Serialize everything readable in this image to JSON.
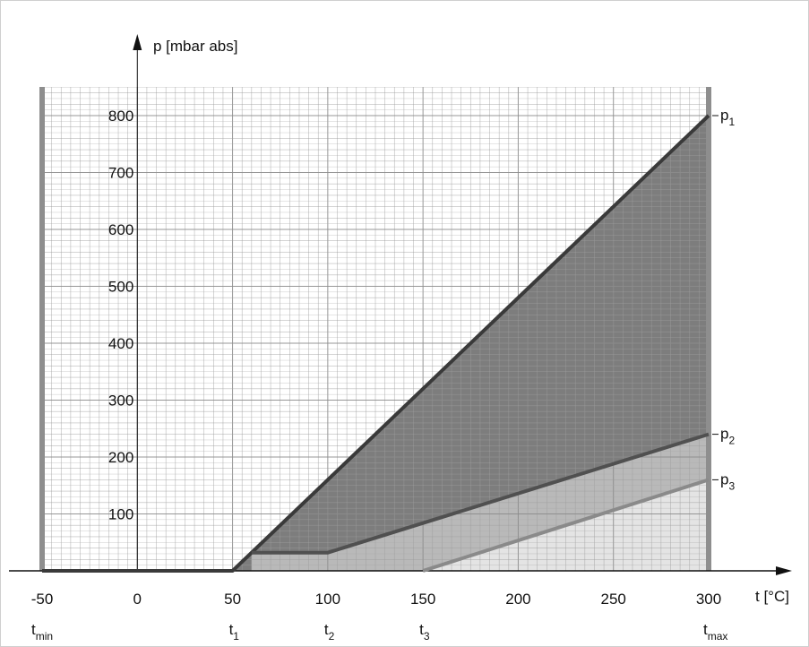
{
  "chart_data": {
    "type": "line",
    "xlabel": "t [°C]",
    "ylabel": "p [mbar abs]",
    "xlim": [
      -50,
      300
    ],
    "ylim": [
      0,
      800
    ],
    "x_ticks": [
      "-50",
      "0",
      "50",
      "100",
      "150",
      "200",
      "250",
      "300"
    ],
    "y_ticks": [
      "100",
      "200",
      "300",
      "400",
      "500",
      "600",
      "700",
      "800"
    ],
    "x_symbols": [
      {
        "base": "t",
        "sub": "min",
        "x": -50
      },
      {
        "base": "t",
        "sub": "1",
        "x": 50
      },
      {
        "base": "t",
        "sub": "2",
        "x": 100
      },
      {
        "base": "t",
        "sub": "3",
        "x": 150
      },
      {
        "base": "t",
        "sub": "max",
        "x": 300
      }
    ],
    "series": [
      {
        "name_base": "p",
        "name_sub": "1",
        "color": "#3a3a3a",
        "x": [
          -50,
          50,
          300
        ],
        "y": [
          0,
          0,
          800
        ]
      },
      {
        "name_base": "p",
        "name_sub": "2",
        "color": "#505050",
        "x": [
          60,
          100,
          300
        ],
        "y": [
          32,
          32,
          240
        ]
      },
      {
        "name_base": "p",
        "name_sub": "3",
        "color": "#8a8a8a",
        "x": [
          150,
          300
        ],
        "y": [
          0,
          160
        ]
      }
    ],
    "region_colors": {
      "above_p2": "#7d7d7d",
      "between_p2_p3": "#b9b9b9",
      "below_p3": "#e4e4e4"
    },
    "grid": true,
    "grid_minor_x_step": 5,
    "grid_minor_y_step": 20
  }
}
